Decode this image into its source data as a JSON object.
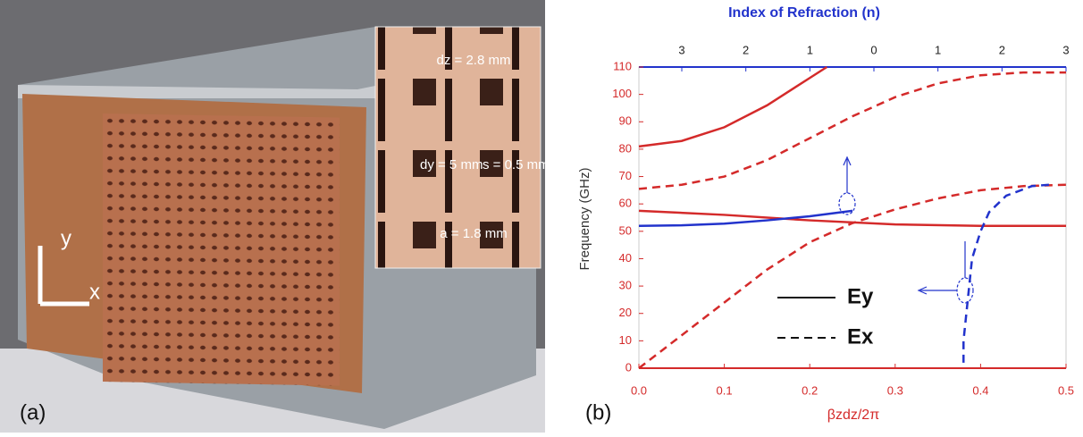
{
  "photo": {
    "labels": [
      "dz = 2.8 mm",
      "dy = 5 mm",
      "s = 0.5 mm",
      "a = 1.8 mm"
    ],
    "axes": [
      "y",
      "x"
    ],
    "panel": "(a)"
  },
  "chart_data": {
    "type": "line",
    "panel": "(b)",
    "title": "Index of Refraction (n)",
    "x_label": "βzdz/2π",
    "y_label": "Frequency (GHz)",
    "xlim": [
      0,
      0.5
    ],
    "xticks": [
      {
        "value": 0,
        "label": "0.0"
      },
      0.1,
      0.2,
      0.3,
      0.4,
      0.5
    ],
    "x2lim": [
      -3.67,
      3
    ],
    "x2ticks": [
      {
        "value": -3,
        "label": "3"
      },
      {
        "value": -2,
        "label": "2"
      },
      {
        "value": -1,
        "label": "1"
      },
      0,
      1,
      2,
      3
    ],
    "ylim": [
      0,
      110
    ],
    "yticks": [
      0,
      10,
      20,
      30,
      40,
      50,
      60,
      70,
      80,
      90,
      100,
      110
    ],
    "legend": [
      {
        "label": "Ey",
        "dash": false
      },
      {
        "label": "Ex",
        "dash": true
      }
    ],
    "series": [
      {
        "color": "#d42a2a",
        "dash": false,
        "x": [
          0,
          0.05,
          0.1,
          0.15,
          0.2,
          0.22
        ],
        "values": [
          81,
          83,
          88,
          96,
          106,
          110
        ]
      },
      {
        "color": "#d42a2a",
        "dash": true,
        "x": [
          0,
          0.05,
          0.1,
          0.15,
          0.2,
          0.25,
          0.3,
          0.35,
          0.4,
          0.45,
          0.5
        ],
        "values": [
          65.5,
          67,
          70,
          76,
          84,
          92,
          99,
          104,
          107,
          108,
          108
        ]
      },
      {
        "color": "#d42a2a",
        "dash": true,
        "x": [
          0,
          0.05,
          0.1,
          0.15,
          0.2,
          0.25,
          0.3,
          0.35,
          0.4,
          0.45,
          0.5
        ],
        "values": [
          0,
          12,
          24,
          36,
          46,
          53,
          58,
          62,
          65,
          66.5,
          67
        ]
      },
      {
        "color": "#d42a2a",
        "dash": false,
        "x": [
          0,
          0.1,
          0.2,
          0.3,
          0.4,
          0.5
        ],
        "values": [
          57.5,
          56,
          54,
          52.5,
          52,
          52
        ]
      },
      {
        "color": "#2233cc",
        "dash": false,
        "x": [
          0,
          0.05,
          0.1,
          0.15,
          0.2,
          0.25
        ],
        "values": [
          52,
          52.2,
          52.8,
          54,
          55.5,
          57.5
        ]
      },
      {
        "color": "#2233cc",
        "dash": true,
        "x": [
          0.38,
          0.38,
          0.385,
          0.39,
          0.4,
          0.41,
          0.43,
          0.46,
          0.48
        ],
        "values": [
          2,
          10,
          25,
          40,
          50,
          57,
          63,
          66.5,
          67
        ]
      }
    ]
  }
}
